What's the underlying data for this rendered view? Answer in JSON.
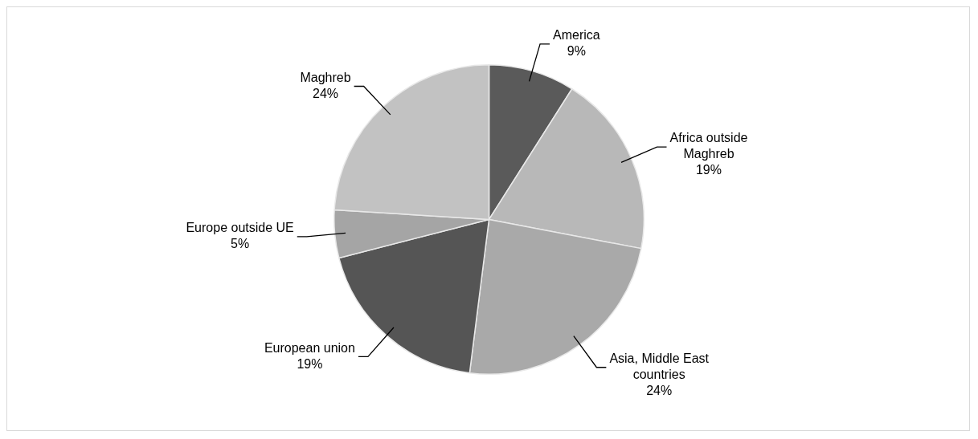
{
  "chart_data": {
    "type": "pie",
    "categories": [
      "America",
      "Africa outside Maghreb",
      "Asia, Middle East countries",
      "European union",
      "Europe outside UE",
      "Maghreb"
    ],
    "values": [
      9,
      19,
      24,
      19,
      5,
      24
    ],
    "value_labels": [
      "9%",
      "19%",
      "24%",
      "19%",
      "5%",
      "24%"
    ],
    "colors": [
      "#5a5a5a",
      "#b8b8b8",
      "#a9a9a9",
      "#555555",
      "#a5a5a5",
      "#c2c2c2"
    ],
    "legend": false
  }
}
